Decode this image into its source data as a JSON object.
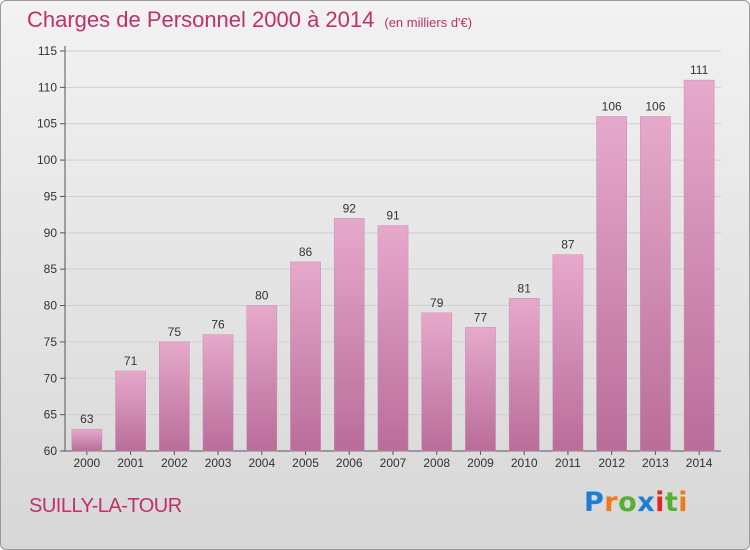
{
  "title": "Charges de Personnel 2000 à 2014",
  "subtitle": "(en milliers d'€)",
  "town": "SUILLY-LA-TOUR",
  "logo": {
    "text": "Proxiti",
    "colors": [
      "#1e7fd0",
      "#f07a1a",
      "#56b030",
      "#1e7fd0",
      "#e2281f",
      "#56b030",
      "#f07a1a"
    ]
  },
  "colors": {
    "accent": "#c0306a",
    "bar_top": "#e6a9cb",
    "bar_bottom": "#b96d99"
  },
  "chart_data": {
    "type": "bar",
    "categories": [
      "2000",
      "2001",
      "2002",
      "2003",
      "2004",
      "2005",
      "2006",
      "2007",
      "2008",
      "2009",
      "2010",
      "2011",
      "2012",
      "2013",
      "2014"
    ],
    "values": [
      63,
      71,
      75,
      76,
      80,
      86,
      92,
      91,
      79,
      77,
      81,
      87,
      106,
      106,
      111
    ],
    "ylim": [
      60,
      115
    ],
    "yticks": [
      60,
      65,
      70,
      75,
      80,
      85,
      90,
      95,
      100,
      105,
      110,
      115
    ],
    "grid": true
  }
}
